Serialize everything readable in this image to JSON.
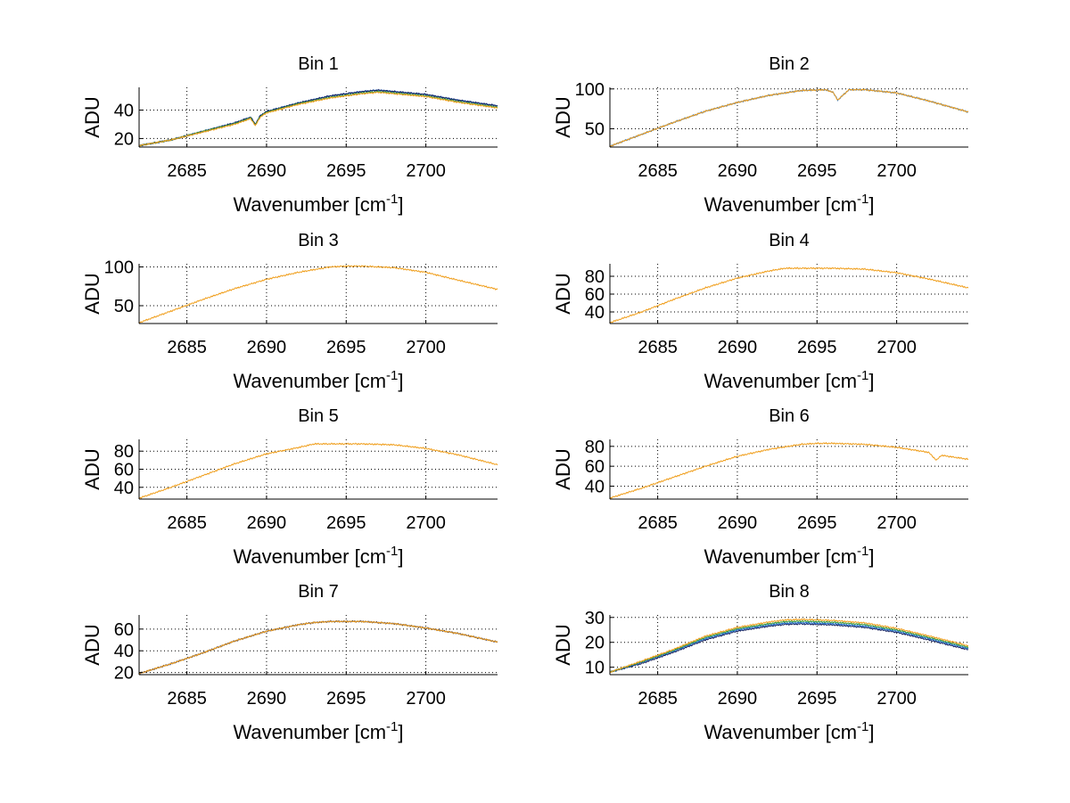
{
  "figure": {
    "colors": {
      "blue": "#1f6fd0",
      "navy": "#15215e",
      "green": "#3a9a3a",
      "orange": "#f0a020",
      "axis": "#000000",
      "grid": "#000000"
    }
  },
  "chart_data": [
    {
      "type": "line",
      "title": "Bin 1",
      "xlabel": "Wavenumber [cm",
      "xlabel_sup": "-1",
      "xlabel_end": "]",
      "ylabel": "ADU",
      "xlim": [
        2682,
        2704.5
      ],
      "ylim": [
        14,
        56
      ],
      "xticks": [
        2685,
        2690,
        2695,
        2700
      ],
      "yticks": [
        20,
        40
      ],
      "grid": true,
      "x": [
        2682,
        2684,
        2686,
        2688,
        2689,
        2689.3,
        2689.6,
        2690,
        2692,
        2694,
        2696,
        2697,
        2698,
        2700,
        2702,
        2704.5
      ],
      "series": [
        {
          "name": "blue",
          "y": [
            15,
            19,
            25,
            31,
            35,
            30,
            36,
            39,
            45,
            50,
            53,
            54,
            53,
            51,
            47,
            43
          ]
        },
        {
          "name": "navy",
          "y": [
            15,
            19,
            25,
            31,
            35,
            30,
            36,
            39,
            45,
            50,
            53,
            54,
            53,
            51,
            47,
            43
          ]
        },
        {
          "name": "green",
          "y": [
            15,
            19,
            25,
            30.5,
            34.5,
            29.5,
            35.5,
            38.5,
            44.5,
            49,
            52,
            53,
            52,
            50,
            46,
            42
          ]
        },
        {
          "name": "orange",
          "y": [
            15,
            19,
            24.5,
            30,
            34,
            29,
            35,
            38,
            44,
            48.5,
            51.5,
            52.5,
            51.5,
            49.5,
            45.5,
            41.5
          ]
        }
      ]
    },
    {
      "type": "line",
      "title": "Bin 2",
      "xlabel": "Wavenumber [cm",
      "xlabel_sup": "-1",
      "xlabel_end": "]",
      "ylabel": "ADU",
      "xlim": [
        2682,
        2704.5
      ],
      "ylim": [
        27,
        102
      ],
      "xticks": [
        2685,
        2690,
        2695,
        2700
      ],
      "yticks": [
        50,
        100
      ],
      "grid": true,
      "x": [
        2682,
        2684,
        2686,
        2688,
        2690,
        2692,
        2694,
        2695.5,
        2696,
        2696.3,
        2697,
        2698,
        2700,
        2702,
        2704.5
      ],
      "series": [
        {
          "name": "blue",
          "y": [
            28,
            43,
            58,
            72,
            83,
            92,
            98,
            99,
            96,
            86,
            99,
            99,
            95,
            85,
            71
          ]
        },
        {
          "name": "orange",
          "y": [
            28,
            43,
            58,
            72,
            83,
            92,
            98,
            99,
            96,
            86,
            99,
            99,
            95,
            85,
            71
          ]
        }
      ]
    },
    {
      "type": "line",
      "title": "Bin 3",
      "xlabel": "Wavenumber [cm",
      "xlabel_sup": "-1",
      "xlabel_end": "]",
      "ylabel": "ADU",
      "xlim": [
        2682,
        2704.5
      ],
      "ylim": [
        27,
        104
      ],
      "xticks": [
        2685,
        2690,
        2695,
        2700
      ],
      "yticks": [
        50,
        100
      ],
      "grid": true,
      "x": [
        2682,
        2684,
        2686,
        2688,
        2690,
        2692,
        2694,
        2695,
        2696,
        2698,
        2700,
        2702,
        2704.5
      ],
      "series": [
        {
          "name": "orange",
          "y": [
            28,
            43,
            58,
            72,
            84,
            93,
            100,
            101,
            101,
            99,
            93,
            83,
            71
          ]
        }
      ]
    },
    {
      "type": "line",
      "title": "Bin 4",
      "xlabel": "Wavenumber [cm",
      "xlabel_sup": "-1",
      "xlabel_end": "]",
      "ylabel": "ADU",
      "xlim": [
        2682,
        2704.5
      ],
      "ylim": [
        27,
        94
      ],
      "xticks": [
        2685,
        2690,
        2695,
        2700
      ],
      "yticks": [
        40,
        60,
        80
      ],
      "grid": true,
      "x": [
        2682,
        2684,
        2686,
        2688,
        2690,
        2692,
        2693,
        2694,
        2696,
        2698,
        2700,
        2702,
        2704.5
      ],
      "series": [
        {
          "name": "orange",
          "y": [
            28,
            40,
            54,
            67,
            78,
            86,
            89,
            89,
            89,
            88,
            84,
            77,
            67
          ]
        }
      ]
    },
    {
      "type": "line",
      "title": "Bin 5",
      "xlabel": "Wavenumber [cm",
      "xlabel_sup": "-1",
      "xlabel_end": "]",
      "ylabel": "ADU",
      "xlim": [
        2682,
        2704.5
      ],
      "ylim": [
        27,
        93
      ],
      "xticks": [
        2685,
        2690,
        2695,
        2700
      ],
      "yticks": [
        40,
        60,
        80
      ],
      "grid": true,
      "x": [
        2682,
        2684,
        2686,
        2688,
        2690,
        2692,
        2693,
        2694,
        2696,
        2698,
        2700,
        2702,
        2704.5
      ],
      "series": [
        {
          "name": "orange",
          "y": [
            28,
            40,
            53,
            66,
            77,
            84,
            88,
            88,
            88,
            87,
            83,
            76,
            65
          ]
        }
      ]
    },
    {
      "type": "line",
      "title": "Bin 6",
      "xlabel": "Wavenumber [cm",
      "xlabel_sup": "-1",
      "xlabel_end": "]",
      "ylabel": "ADU",
      "xlim": [
        2682,
        2704.5
      ],
      "ylim": [
        27,
        87
      ],
      "xticks": [
        2685,
        2690,
        2695,
        2700
      ],
      "yticks": [
        40,
        60,
        80
      ],
      "grid": true,
      "x": [
        2682,
        2684,
        2686,
        2688,
        2690,
        2692,
        2694,
        2695,
        2696,
        2698,
        2700,
        2702,
        2702.5,
        2702.8,
        2704.5
      ],
      "series": [
        {
          "name": "orange",
          "y": [
            28,
            38,
            49,
            60,
            70,
            77,
            82,
            83,
            83,
            82,
            79,
            74,
            66,
            71,
            67
          ]
        }
      ]
    },
    {
      "type": "line",
      "title": "Bin 7",
      "xlabel": "Wavenumber [cm",
      "xlabel_sup": "-1",
      "xlabel_end": "]",
      "ylabel": "ADU",
      "xlim": [
        2682,
        2704.5
      ],
      "ylim": [
        18,
        73
      ],
      "xticks": [
        2685,
        2690,
        2695,
        2700
      ],
      "yticks": [
        20,
        40,
        60
      ],
      "grid": true,
      "x": [
        2682,
        2684,
        2686,
        2688,
        2690,
        2692,
        2693,
        2694,
        2696,
        2698,
        2700,
        2702,
        2704.5
      ],
      "series": [
        {
          "name": "navy",
          "y": [
            19,
            28,
            38,
            49,
            58,
            64,
            66,
            67,
            67,
            65,
            61,
            56,
            48
          ]
        },
        {
          "name": "orange",
          "y": [
            19,
            28,
            38,
            49,
            58,
            64,
            66,
            67,
            67,
            65,
            61,
            56,
            48
          ]
        }
      ]
    },
    {
      "type": "line",
      "title": "Bin 8",
      "xlabel": "Wavenumber [cm",
      "xlabel_sup": "-1",
      "xlabel_end": "]",
      "ylabel": "ADU",
      "xlim": [
        2682,
        2704.5
      ],
      "ylim": [
        7,
        31
      ],
      "xticks": [
        2685,
        2690,
        2695,
        2700
      ],
      "yticks": [
        10,
        20,
        30
      ],
      "grid": true,
      "x": [
        2682,
        2684,
        2686,
        2688,
        2690,
        2692,
        2693,
        2694,
        2696,
        2698,
        2700,
        2702,
        2704.5
      ],
      "series": [
        {
          "name": "navy",
          "y": [
            8,
            11.5,
            16,
            21,
            24.5,
            26.5,
            27.2,
            27.4,
            27,
            26,
            24,
            21,
            17
          ]
        },
        {
          "name": "blue",
          "y": [
            8,
            12,
            16.5,
            21.5,
            25,
            27,
            27.7,
            27.9,
            27.5,
            26.5,
            24.5,
            21.5,
            17.5
          ]
        },
        {
          "name": "green",
          "y": [
            8,
            12.2,
            16.8,
            22,
            25.5,
            27.5,
            28.3,
            28.5,
            28.1,
            27.1,
            25,
            22,
            18
          ]
        },
        {
          "name": "orange",
          "y": [
            8,
            12.5,
            17.2,
            22.5,
            26,
            28.2,
            29,
            29.2,
            28.8,
            27.8,
            25.6,
            22.6,
            18.6
          ]
        }
      ]
    }
  ]
}
